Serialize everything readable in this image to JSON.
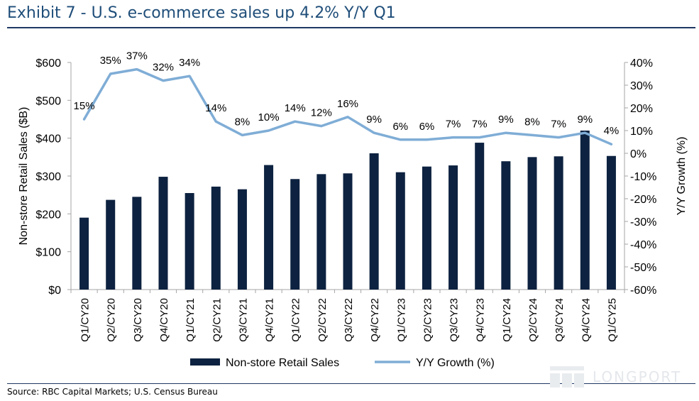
{
  "title": "Exhibit 7 - U.S. e-commerce sales up 4.2% Y/Y Q1",
  "source": "Source: RBC Capital Markets; U.S. Census Bureau",
  "watermark": "LONGPORT",
  "colors": {
    "bar": "#0d2240",
    "line": "#7fadd6",
    "title": "#1f4e79",
    "watermark": "#e4e7eb"
  },
  "chart_data": {
    "type": "bar",
    "categories": [
      "Q1/CY20",
      "Q2/CY20",
      "Q3/CY20",
      "Q4/CY20",
      "Q1/CY21",
      "Q2/CY21",
      "Q3/CY21",
      "Q4/CY21",
      "Q1/CY22",
      "Q2/CY22",
      "Q3/CY22",
      "Q4/CY22",
      "Q1/CY23",
      "Q2/CY23",
      "Q3/CY23",
      "Q4/CY23",
      "Q1/CY24",
      "Q2/CY24",
      "Q3/CY24",
      "Q4/CY24",
      "Q1/CY25"
    ],
    "ylabel": "Non-store Retail Sales ($B)",
    "y2label": "Y/Y Growth (%)",
    "ylim": [
      0,
      600
    ],
    "y2lim": [
      -60,
      40
    ],
    "yticks": [
      "$0",
      "$100",
      "$200",
      "$300",
      "$400",
      "$500",
      "$600"
    ],
    "y2ticks": [
      "-60%",
      "-50%",
      "-40%",
      "-30%",
      "-20%",
      "-10%",
      "0%",
      "10%",
      "20%",
      "30%",
      "40%"
    ],
    "legend_position": "bottom",
    "grid": false,
    "series": [
      {
        "name": "Non-store Retail Sales",
        "type": "bar",
        "axis": "left",
        "values": [
          190,
          237,
          245,
          298,
          255,
          272,
          265,
          329,
          292,
          305,
          307,
          360,
          310,
          325,
          328,
          388,
          339,
          350,
          352,
          420,
          353
        ]
      },
      {
        "name": "Y/Y Growth (%)",
        "type": "line",
        "axis": "right",
        "values": [
          15,
          35,
          37,
          32,
          34,
          14,
          8,
          10,
          14,
          12,
          16,
          9,
          6,
          6,
          7,
          7,
          9,
          8,
          7,
          9,
          4
        ],
        "labels": [
          "15%",
          "35%",
          "37%",
          "32%",
          "34%",
          "14%",
          "8%",
          "10%",
          "14%",
          "12%",
          "16%",
          "9%",
          "6%",
          "6%",
          "7%",
          "7%",
          "9%",
          "8%",
          "7%",
          "9%",
          "4%"
        ]
      }
    ]
  }
}
